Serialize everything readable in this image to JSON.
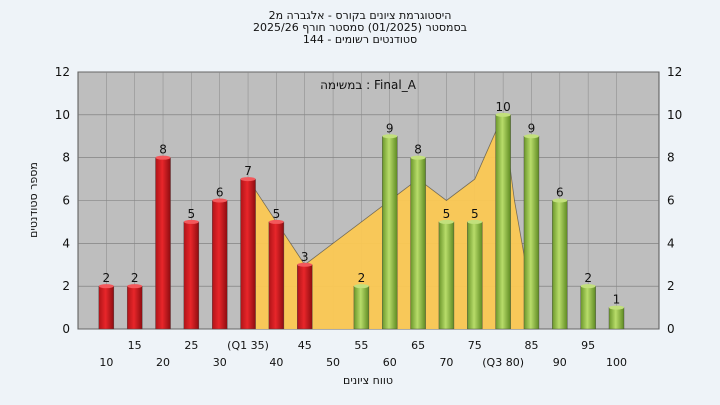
{
  "header": {
    "title_line1": "היסטוגרמת ציונים בקורס - אלגברה מ2",
    "title_line2": "בסמסטר  (01/2025)  סמסטר חורף 2025/26",
    "title_line3": "סטודנטים רשומים - 144"
  },
  "colors": {
    "fail_bar": "#e8262a",
    "pass_bar": "#8fbd3e",
    "distribution_area": "#fbc853",
    "plot_bg": "#bebebe"
  },
  "chart_data": {
    "type": "bar",
    "xlabel": "טווח ציונים",
    "ylabel": "מספר סטודנטים",
    "ylim": [
      0,
      12
    ],
    "yticks": [
      0,
      2,
      4,
      6,
      8,
      10,
      12
    ],
    "grid": true,
    "annotation": "במשימה : Final_A",
    "x_tick_labels_lower": [
      "10",
      "20",
      "30",
      "40",
      "50",
      "60",
      "70",
      "(Q3 80)",
      "90",
      "100"
    ],
    "x_tick_labels_upper": [
      "15",
      "25",
      "(Q1 35)",
      "45",
      "55",
      "65",
      "75",
      "85",
      "95"
    ],
    "categories": [
      10,
      15,
      20,
      25,
      30,
      35,
      40,
      45,
      50,
      55,
      60,
      65,
      70,
      75,
      80,
      85,
      90,
      95,
      100
    ],
    "values": [
      2,
      2,
      8,
      5,
      6,
      7,
      5,
      3,
      0,
      2,
      9,
      8,
      5,
      5,
      10,
      9,
      6,
      2,
      1
    ],
    "bar_group": [
      "fail",
      "fail",
      "fail",
      "fail",
      "fail",
      "fail",
      "fail",
      "fail",
      "fail",
      "pass",
      "pass",
      "pass",
      "pass",
      "pass",
      "pass",
      "pass",
      "pass",
      "pass",
      "pass"
    ],
    "distribution_curve": {
      "x": [
        35,
        40,
        45,
        50,
        55,
        60,
        65,
        70,
        75,
        80,
        82,
        84
      ],
      "y": [
        7,
        5,
        3,
        4,
        5,
        6,
        7,
        6,
        7,
        10,
        6,
        3
      ]
    }
  }
}
